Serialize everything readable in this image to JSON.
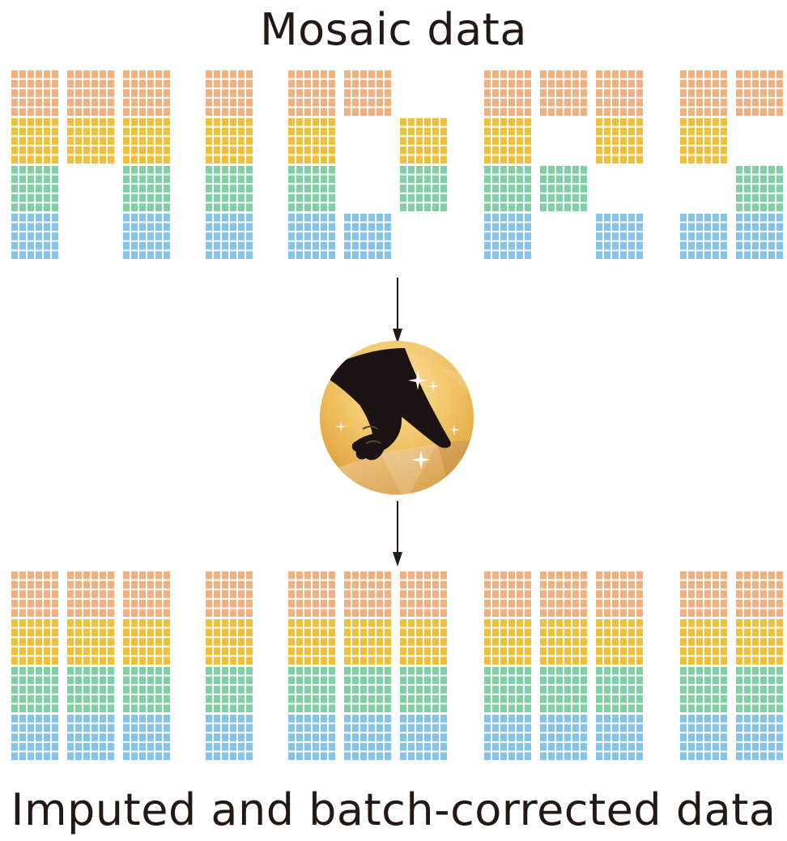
{
  "top_title": "Mosaic data",
  "bottom_title": "Imputed and batch-corrected data",
  "modality_colors": {
    "modality_1": "#f2b07e",
    "modality_2": "#f0c03a",
    "modality_3": "#7fd0a5",
    "modality_4": "#85c4ea"
  },
  "arrow_color": "#231815",
  "icon": {
    "name": "pointing-hand-icon",
    "gold_light": "#fde3a0",
    "gold_dark": "#d69a34",
    "hand_color": "#1a1311"
  },
  "letters": [
    "M",
    "I",
    "D",
    "A",
    "S"
  ],
  "mosaic_presence": [
    [
      [
        1,
        1,
        1,
        1
      ],
      [
        1,
        1,
        0,
        0
      ],
      [
        1,
        1,
        1,
        1
      ]
    ],
    [
      [
        1,
        1,
        1,
        1
      ]
    ],
    [
      [
        1,
        1,
        1,
        1
      ],
      [
        1,
        0,
        0,
        1
      ],
      [
        0,
        1,
        1,
        0
      ]
    ],
    [
      [
        1,
        1,
        1,
        1
      ],
      [
        1,
        0,
        1,
        0
      ],
      [
        1,
        1,
        0,
        1
      ]
    ],
    [
      [
        1,
        1,
        0,
        1
      ],
      [
        1,
        0,
        1,
        1
      ]
    ]
  ]
}
